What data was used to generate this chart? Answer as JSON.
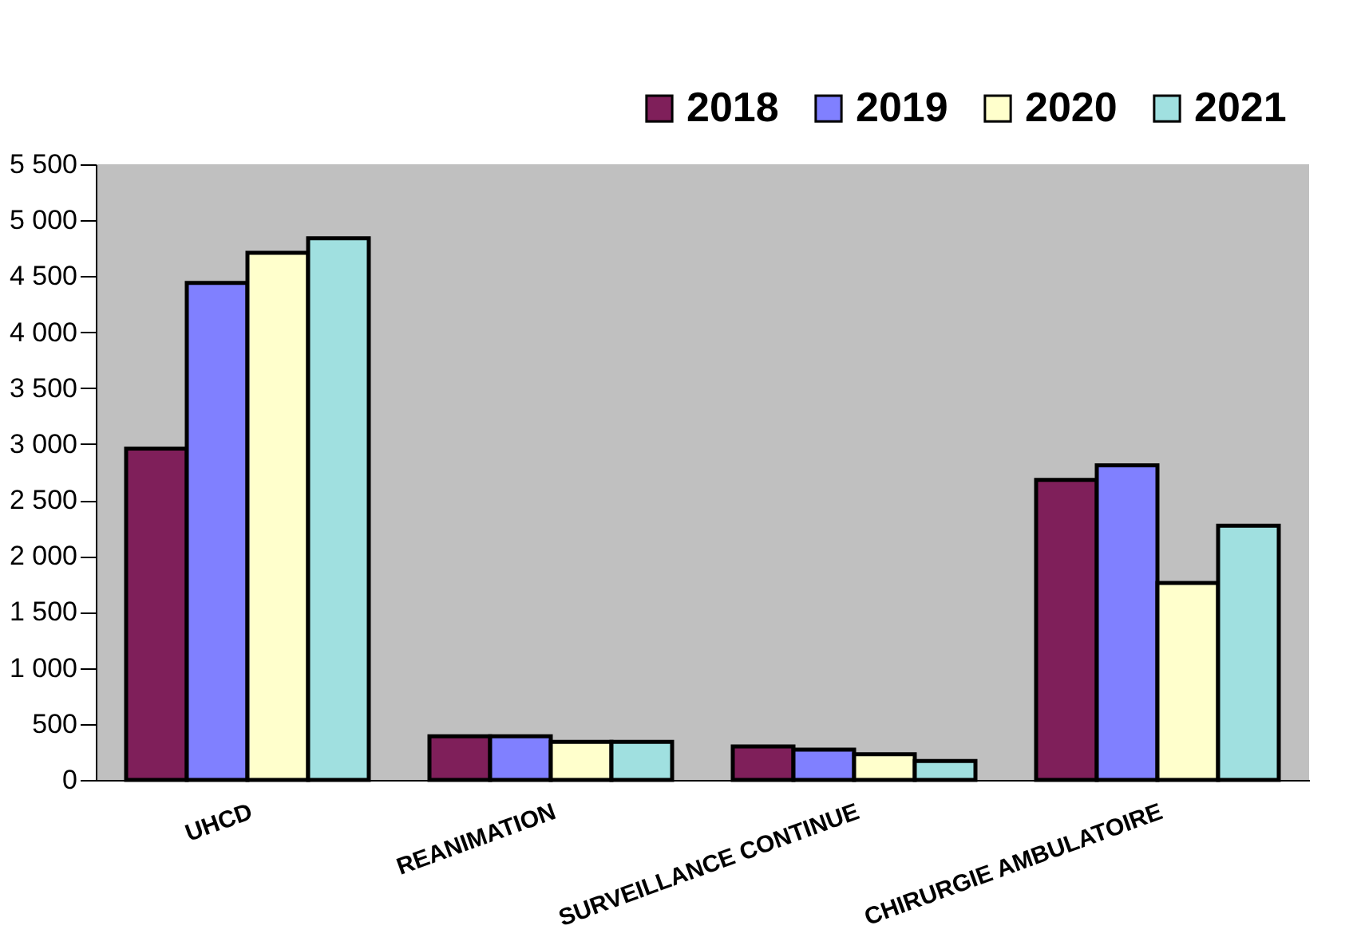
{
  "chart_data": {
    "type": "bar",
    "categories": [
      "UHCD",
      "REANIMATION",
      "SURVEILLANCE CONTINUE",
      "CHIRURGIE AMBULATOIRE"
    ],
    "series": [
      {
        "name": "2018",
        "color": "#7f1f5a",
        "values": [
          2960,
          390,
          300,
          2680
        ]
      },
      {
        "name": "2019",
        "color": "#8080ff",
        "values": [
          4440,
          390,
          270,
          2810
        ]
      },
      {
        "name": "2020",
        "color": "#ffffcc",
        "values": [
          4710,
          340,
          230,
          1760
        ]
      },
      {
        "name": "2021",
        "color": "#a0e0e0",
        "values": [
          4840,
          340,
          170,
          2270
        ]
      }
    ],
    "ylim": [
      0,
      5500
    ],
    "yticks": [
      {
        "value": 0,
        "label": "0"
      },
      {
        "value": 500,
        "label": "500"
      },
      {
        "value": 1000,
        "label": "1 000"
      },
      {
        "value": 1500,
        "label": "1 500"
      },
      {
        "value": 2000,
        "label": "2 000"
      },
      {
        "value": 2500,
        "label": "2 500"
      },
      {
        "value": 3000,
        "label": "3 000"
      },
      {
        "value": 3500,
        "label": "3 500"
      },
      {
        "value": 4000,
        "label": "4 000"
      },
      {
        "value": 4500,
        "label": "4 500"
      },
      {
        "value": 5000,
        "label": "5 000"
      },
      {
        "value": 5500,
        "label": "5 500"
      }
    ],
    "grid": false,
    "legend": "top right"
  }
}
